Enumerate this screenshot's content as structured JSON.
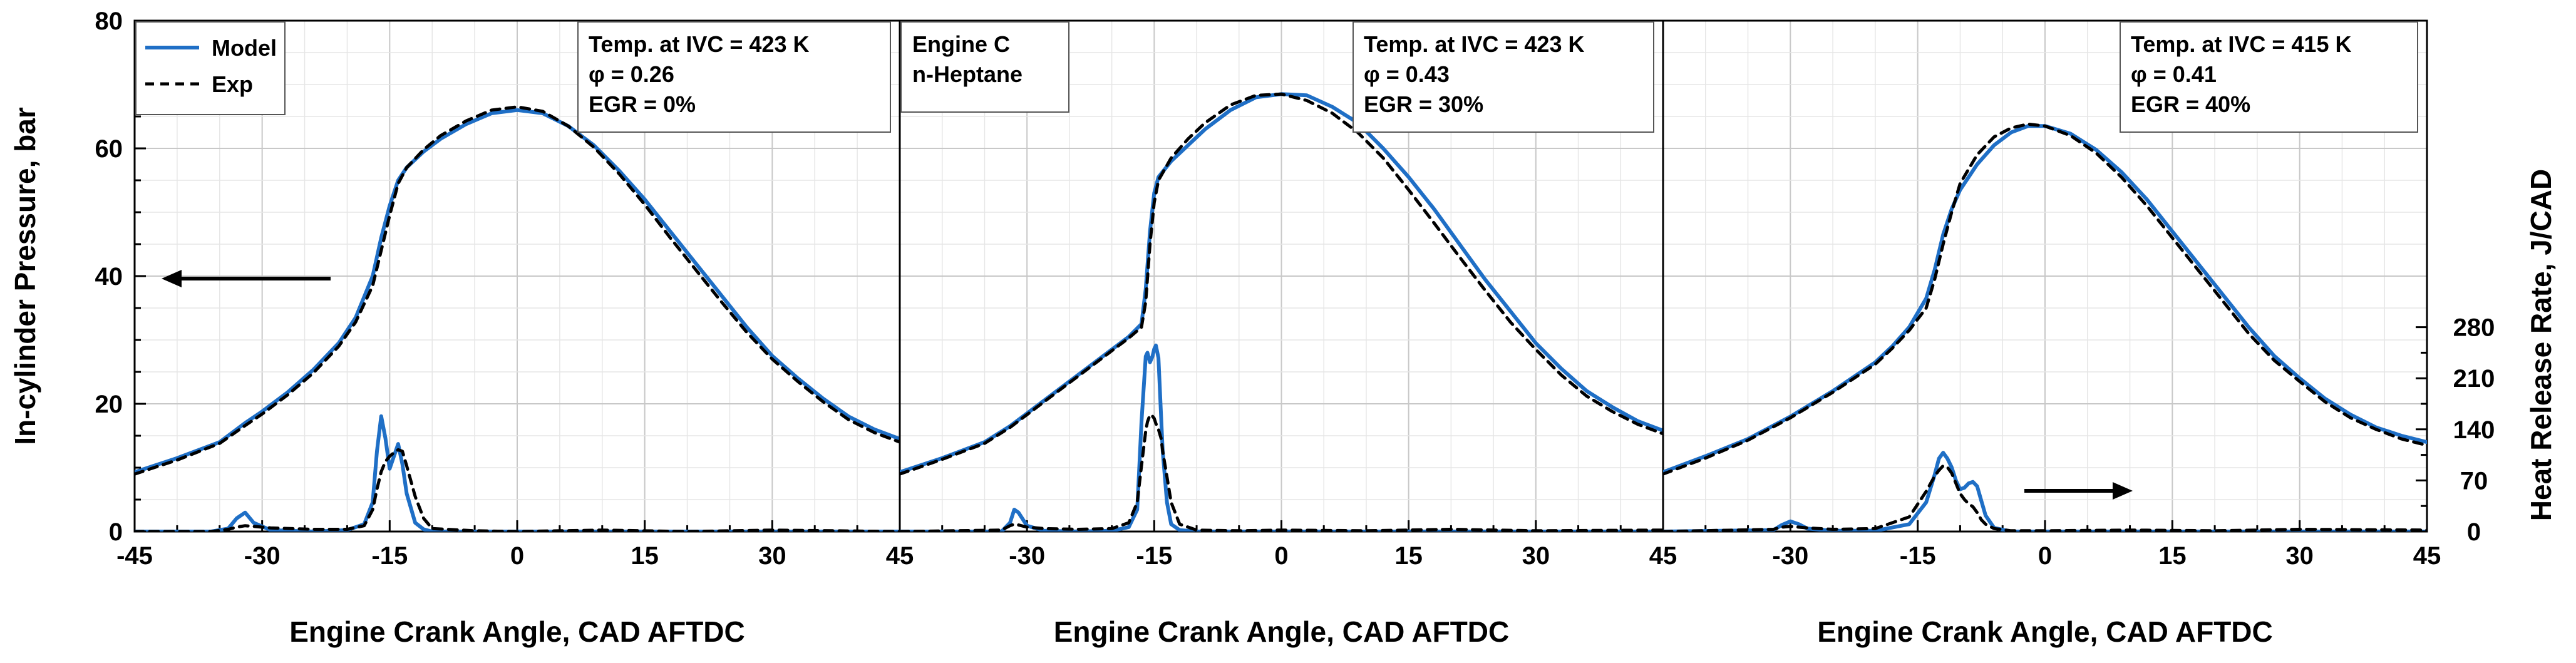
{
  "chart_data": {
    "type": "line",
    "shared": {
      "left_ylabel": "In-cylinder Pressure, bar",
      "right_ylabel": "Heat Release Rate, J/CAD",
      "pressure_ylim": [
        0,
        80
      ],
      "pressure_yticks": [
        "0",
        "20",
        "40",
        "60",
        "80"
      ],
      "hrr_ylim": [
        0,
        700
      ],
      "hrr_yticks": [
        "0",
        "70",
        "140",
        "210",
        "280"
      ],
      "legend": [
        {
          "name": "Model",
          "color": "#1f6fc6",
          "style": "solid"
        },
        {
          "name": "Exp",
          "color": "#000000",
          "style": "dashed"
        }
      ],
      "xticks": [
        "-45",
        "-30",
        "-15",
        "0",
        "15",
        "30",
        "45"
      ]
    },
    "panels": [
      {
        "xlabel": "Engine Crank Angle, CAD AFTDC",
        "xlim": [
          -45,
          45
        ],
        "conditions": [
          "Temp. at IVC = 423 K",
          "φ = 0.26",
          "EGR = 0%"
        ],
        "label_lines": [],
        "arrow": "left",
        "pressure": {
          "x": [
            -45,
            -40,
            -35,
            -32,
            -30,
            -27,
            -24,
            -21,
            -19,
            -17,
            -16,
            -15,
            -14,
            -13,
            -11,
            -9,
            -6,
            -3,
            0,
            3,
            6,
            9,
            12,
            15,
            18,
            21,
            24,
            27,
            30,
            33,
            36,
            39,
            42,
            45
          ],
          "model": [
            9.3,
            11.5,
            14.0,
            17.0,
            18.8,
            21.8,
            25.3,
            29.5,
            33.5,
            40.0,
            46.0,
            51.0,
            55.0,
            57.0,
            59.5,
            61.5,
            63.8,
            65.5,
            66.0,
            65.5,
            63.5,
            60.5,
            56.5,
            52.0,
            47.0,
            42.0,
            37.0,
            32.0,
            27.5,
            24.0,
            20.8,
            18.0,
            16.0,
            14.5
          ],
          "exp": [
            9.0,
            11.2,
            13.8,
            16.6,
            18.4,
            21.4,
            24.8,
            29.0,
            32.8,
            38.5,
            44.0,
            49.5,
            54.5,
            57.0,
            59.8,
            62.0,
            64.3,
            66.0,
            66.5,
            65.8,
            63.5,
            60.2,
            56.0,
            51.2,
            46.0,
            41.0,
            36.0,
            31.2,
            27.0,
            23.5,
            20.3,
            17.5,
            15.5,
            14.0
          ]
        },
        "hrr": {
          "x": [
            -45,
            -36,
            -34,
            -33,
            -32,
            -31,
            -29,
            -24,
            -20,
            -18,
            -17,
            -16.5,
            -16,
            -15.5,
            -15,
            -14.5,
            -14,
            -13.5,
            -13,
            -12,
            -11,
            -10,
            -5,
            0,
            10,
            20,
            30,
            45
          ],
          "model": [
            0,
            0,
            4,
            18,
            26,
            12,
            2,
            0,
            2,
            10,
            40,
            110,
            158,
            128,
            86,
            103,
            120,
            92,
            52,
            12,
            3,
            0,
            0,
            0,
            0,
            0,
            0,
            0
          ],
          "exp": [
            0,
            0,
            3,
            6,
            8,
            7,
            5,
            3,
            3,
            8,
            30,
            58,
            82,
            96,
            103,
            108,
            112,
            110,
            90,
            48,
            18,
            4,
            1,
            0,
            2,
            0,
            2,
            0
          ]
        }
      },
      {
        "xlabel": "Engine Crank Angle, CAD AFTDC",
        "xlim": [
          -45,
          45
        ],
        "conditions": [
          "Temp. at IVC = 423 K",
          "φ = 0.43",
          "EGR = 30%"
        ],
        "label_lines": [
          "Engine C",
          "n-Heptane"
        ],
        "arrow": null,
        "pressure": {
          "x": [
            -45,
            -40,
            -35,
            -32,
            -29,
            -26,
            -23,
            -20,
            -18,
            -16.5,
            -16,
            -15.5,
            -15,
            -14.5,
            -13,
            -11,
            -9,
            -6,
            -3,
            0,
            3,
            6,
            9,
            12,
            15,
            18,
            21,
            24,
            27,
            30,
            33,
            36,
            39,
            42,
            45
          ],
          "model": [
            9.3,
            11.5,
            14.0,
            16.5,
            19.5,
            22.5,
            25.5,
            28.5,
            30.5,
            32.5,
            38.0,
            47.0,
            53.0,
            55.5,
            58.0,
            60.5,
            63.0,
            66.0,
            68.0,
            68.5,
            68.3,
            66.5,
            64.0,
            60.0,
            55.5,
            50.5,
            45.0,
            39.5,
            34.5,
            29.5,
            25.5,
            22.0,
            19.5,
            17.3,
            15.8
          ],
          "exp": [
            9.0,
            11.3,
            13.8,
            16.3,
            19.3,
            22.3,
            25.3,
            28.3,
            30.3,
            32.0,
            36.0,
            45.0,
            51.5,
            55.0,
            58.5,
            61.5,
            64.0,
            66.8,
            68.3,
            68.5,
            67.5,
            65.5,
            62.5,
            58.5,
            53.5,
            48.3,
            43.0,
            37.8,
            32.8,
            28.5,
            24.5,
            21.2,
            18.8,
            16.8,
            15.3
          ]
        },
        "hrr": {
          "x": [
            -45,
            -33,
            -32,
            -31.5,
            -31,
            -30,
            -28,
            -24,
            -20,
            -18,
            -17,
            -16.5,
            -16,
            -15.8,
            -15.5,
            -15.2,
            -15,
            -14.8,
            -14.5,
            -14.2,
            -14,
            -13.5,
            -13,
            -12,
            -10,
            -5,
            0,
            10,
            20,
            30,
            45
          ],
          "model": [
            0,
            0,
            12,
            30,
            26,
            8,
            1,
            0,
            1,
            6,
            30,
            150,
            240,
            245,
            232,
            240,
            250,
            255,
            238,
            160,
            110,
            40,
            10,
            2,
            0,
            0,
            0,
            0,
            0,
            0,
            0
          ],
          "exp": [
            0,
            2,
            8,
            10,
            9,
            6,
            4,
            3,
            4,
            12,
            40,
            90,
            138,
            150,
            160,
            158,
            155,
            148,
            140,
            128,
            110,
            75,
            40,
            10,
            2,
            1,
            2,
            1,
            3,
            1,
            2
          ]
        }
      },
      {
        "xlabel": "Engine Crank Angle, CAD AFTDC",
        "xlim": [
          -45,
          45
        ],
        "conditions": [
          "Temp. at IVC = 415 K",
          "φ = 0.41",
          "EGR = 40%"
        ],
        "label_lines": [],
        "arrow": "right",
        "pressure": {
          "x": [
            -45,
            -40,
            -35,
            -30,
            -25,
            -20,
            -18,
            -16,
            -14,
            -13,
            -12,
            -11,
            -10,
            -8,
            -6,
            -4,
            -2,
            0,
            3,
            6,
            9,
            12,
            15,
            18,
            21,
            24,
            27,
            30,
            33,
            36,
            39,
            42,
            45
          ],
          "model": [
            9.3,
            11.8,
            14.5,
            18.0,
            22.0,
            26.5,
            29.0,
            32.0,
            36.5,
            41.0,
            46.5,
            50.5,
            53.5,
            57.5,
            60.5,
            62.5,
            63.5,
            63.5,
            62.3,
            59.8,
            56.3,
            52.0,
            47.0,
            42.0,
            37.0,
            32.0,
            27.5,
            24.0,
            20.8,
            18.3,
            16.3,
            15.0,
            14.0
          ],
          "exp": [
            9.0,
            11.5,
            14.3,
            17.8,
            21.8,
            26.2,
            28.7,
            31.5,
            35.0,
            39.5,
            45.0,
            50.0,
            54.5,
            59.0,
            61.8,
            63.2,
            63.8,
            63.5,
            62.0,
            59.3,
            55.5,
            51.0,
            46.0,
            41.0,
            36.0,
            31.0,
            26.8,
            23.5,
            20.3,
            17.8,
            16.0,
            14.5,
            13.5
          ]
        },
        "hrr": {
          "x": [
            -45,
            -32,
            -31,
            -30,
            -29,
            -28,
            -25,
            -20,
            -16,
            -14,
            -13,
            -12.5,
            -12,
            -11.5,
            -11,
            -10.5,
            -10,
            -9.5,
            -9,
            -8.5,
            -8,
            -7.5,
            -7,
            -6,
            -4,
            0,
            10,
            20,
            30,
            45
          ],
          "model": [
            0,
            2,
            9,
            14,
            10,
            4,
            1,
            1,
            10,
            40,
            78,
            100,
            108,
            100,
            88,
            70,
            58,
            60,
            66,
            68,
            62,
            42,
            22,
            5,
            0,
            0,
            0,
            0,
            0,
            0
          ],
          "exp": [
            0,
            3,
            6,
            7,
            6,
            5,
            3,
            4,
            20,
            55,
            76,
            84,
            90,
            88,
            80,
            66,
            52,
            44,
            38,
            34,
            26,
            16,
            10,
            4,
            1,
            1,
            2,
            1,
            3,
            2
          ]
        }
      }
    ]
  }
}
